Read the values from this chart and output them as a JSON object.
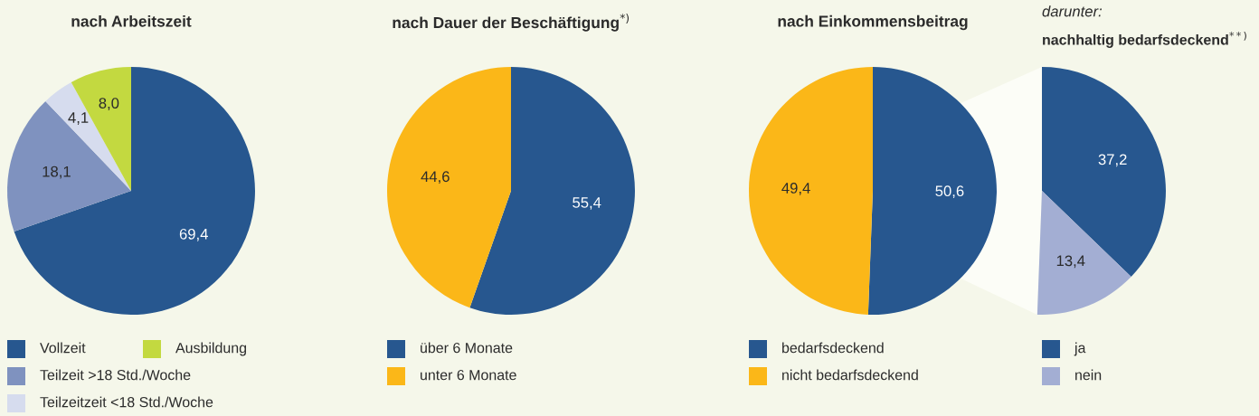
{
  "chart_data": [
    {
      "type": "pie",
      "title": "nach Arbeitszeit",
      "categories": [
        "Vollzeit",
        "Teilzeit >18 Std./Woche",
        "Teilzeitzeit <18 Std./Woche",
        "Ausbildung"
      ],
      "values": [
        69.4,
        18.1,
        4.1,
        8.0
      ],
      "value_labels": [
        "69,4",
        "18,1",
        "4,1",
        "8,0"
      ],
      "colors": [
        "#27578f",
        "#7f92bf",
        "#d6dcee",
        "#c3d940"
      ],
      "legend": "bottom"
    },
    {
      "type": "pie",
      "title": "nach Dauer der Beschäftigung$^{*)}$",
      "categories": [
        "über 6 Monate",
        "unter 6 Monate"
      ],
      "values": [
        55.4,
        44.6
      ],
      "value_labels": [
        "55,4",
        "44,6"
      ],
      "colors": [
        "#27578f",
        "#fbb718"
      ],
      "legend": "bottom"
    },
    {
      "type": "pie",
      "title": "nach Einkommensbeitrag",
      "categories": [
        "bedarfsdeckend",
        "nicht bedarfsdeckend"
      ],
      "values": [
        50.6,
        49.4
      ],
      "value_labels": [
        "50,6",
        "49,4"
      ],
      "colors": [
        "#27578f",
        "#fbb718"
      ],
      "legend": "bottom"
    },
    {
      "type": "pie",
      "subtitle": "darunter:",
      "title": "nachhaltig bedarfsdeckend$^{**)}$",
      "categories": [
        "ja",
        "nein"
      ],
      "values": [
        37.2,
        13.4
      ],
      "value_labels": [
        "37,2",
        "13,4"
      ],
      "colors": [
        "#27578f",
        "#a3aed3"
      ],
      "legend": "bottom"
    }
  ]
}
